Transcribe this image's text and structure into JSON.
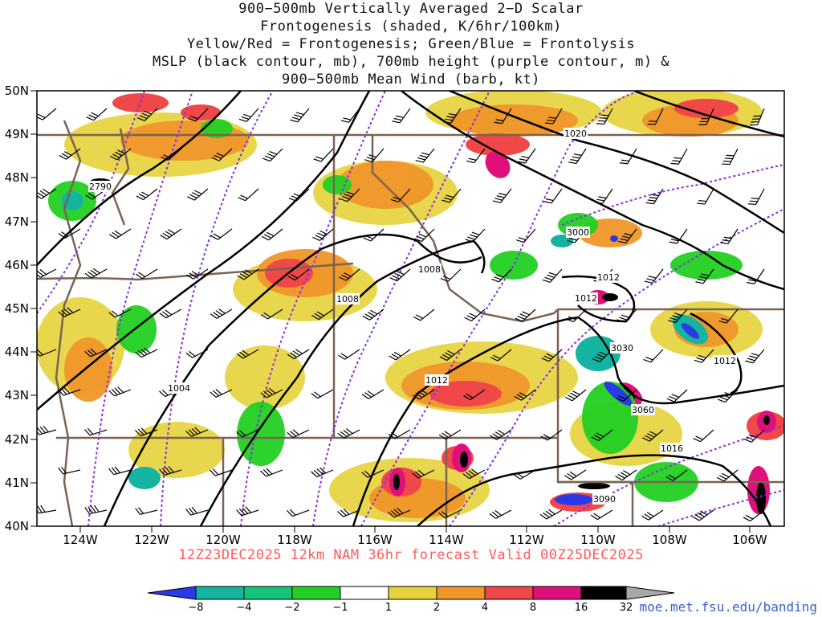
{
  "title": {
    "line1": "900−500mb Vertically Averaged 2−D Scalar",
    "line2": "Frontogenesis (shaded, K/6hr/100km)",
    "line3": "Yellow/Red = Frontogenesis;  Green/Blue = Frontolysis",
    "line4": "MSLP (black contour, mb), 700mb height (purple contour, m) &",
    "line5": "900−500mb Mean Wind (barb, kt)"
  },
  "lat_labels": [
    "50N",
    "49N",
    "48N",
    "47N",
    "46N",
    "45N",
    "44N",
    "43N",
    "42N",
    "41N",
    "40N"
  ],
  "lon_labels": [
    "124W",
    "122W",
    "120W",
    "118W",
    "116W",
    "114W",
    "112W",
    "110W",
    "108W",
    "106W"
  ],
  "contour_labels": {
    "mslp": [
      "1020",
      "1012",
      "1008",
      "1008",
      "1012",
      "1012",
      "1012",
      "1004",
      "1016"
    ],
    "height": [
      "2790",
      "3000",
      "3030",
      "3060",
      "3090"
    ]
  },
  "valid_text": "12Z23DEC2025 12km NAM 36hr forecast Valid 00Z25DEC2025",
  "credit": "moe.met.fsu.edu/banding",
  "colorbar": {
    "ticks": [
      "−8",
      "−4",
      "−2",
      "−1",
      "1",
      "2",
      "4",
      "8",
      "16",
      "32"
    ],
    "colors": [
      "#2a3ae8",
      "#14b4a0",
      "#14c47a",
      "#22d022",
      "#ffffff",
      "#e6d23a",
      "#f0962a",
      "#f04848",
      "#e0107a",
      "#000000",
      "#a8a8a8"
    ]
  },
  "colors": {
    "mslp": "#000000",
    "height": "#8a2be2",
    "borders": "#7a6352",
    "valid_text": "#ff5a5a",
    "credit": "#3a5fd6"
  }
}
